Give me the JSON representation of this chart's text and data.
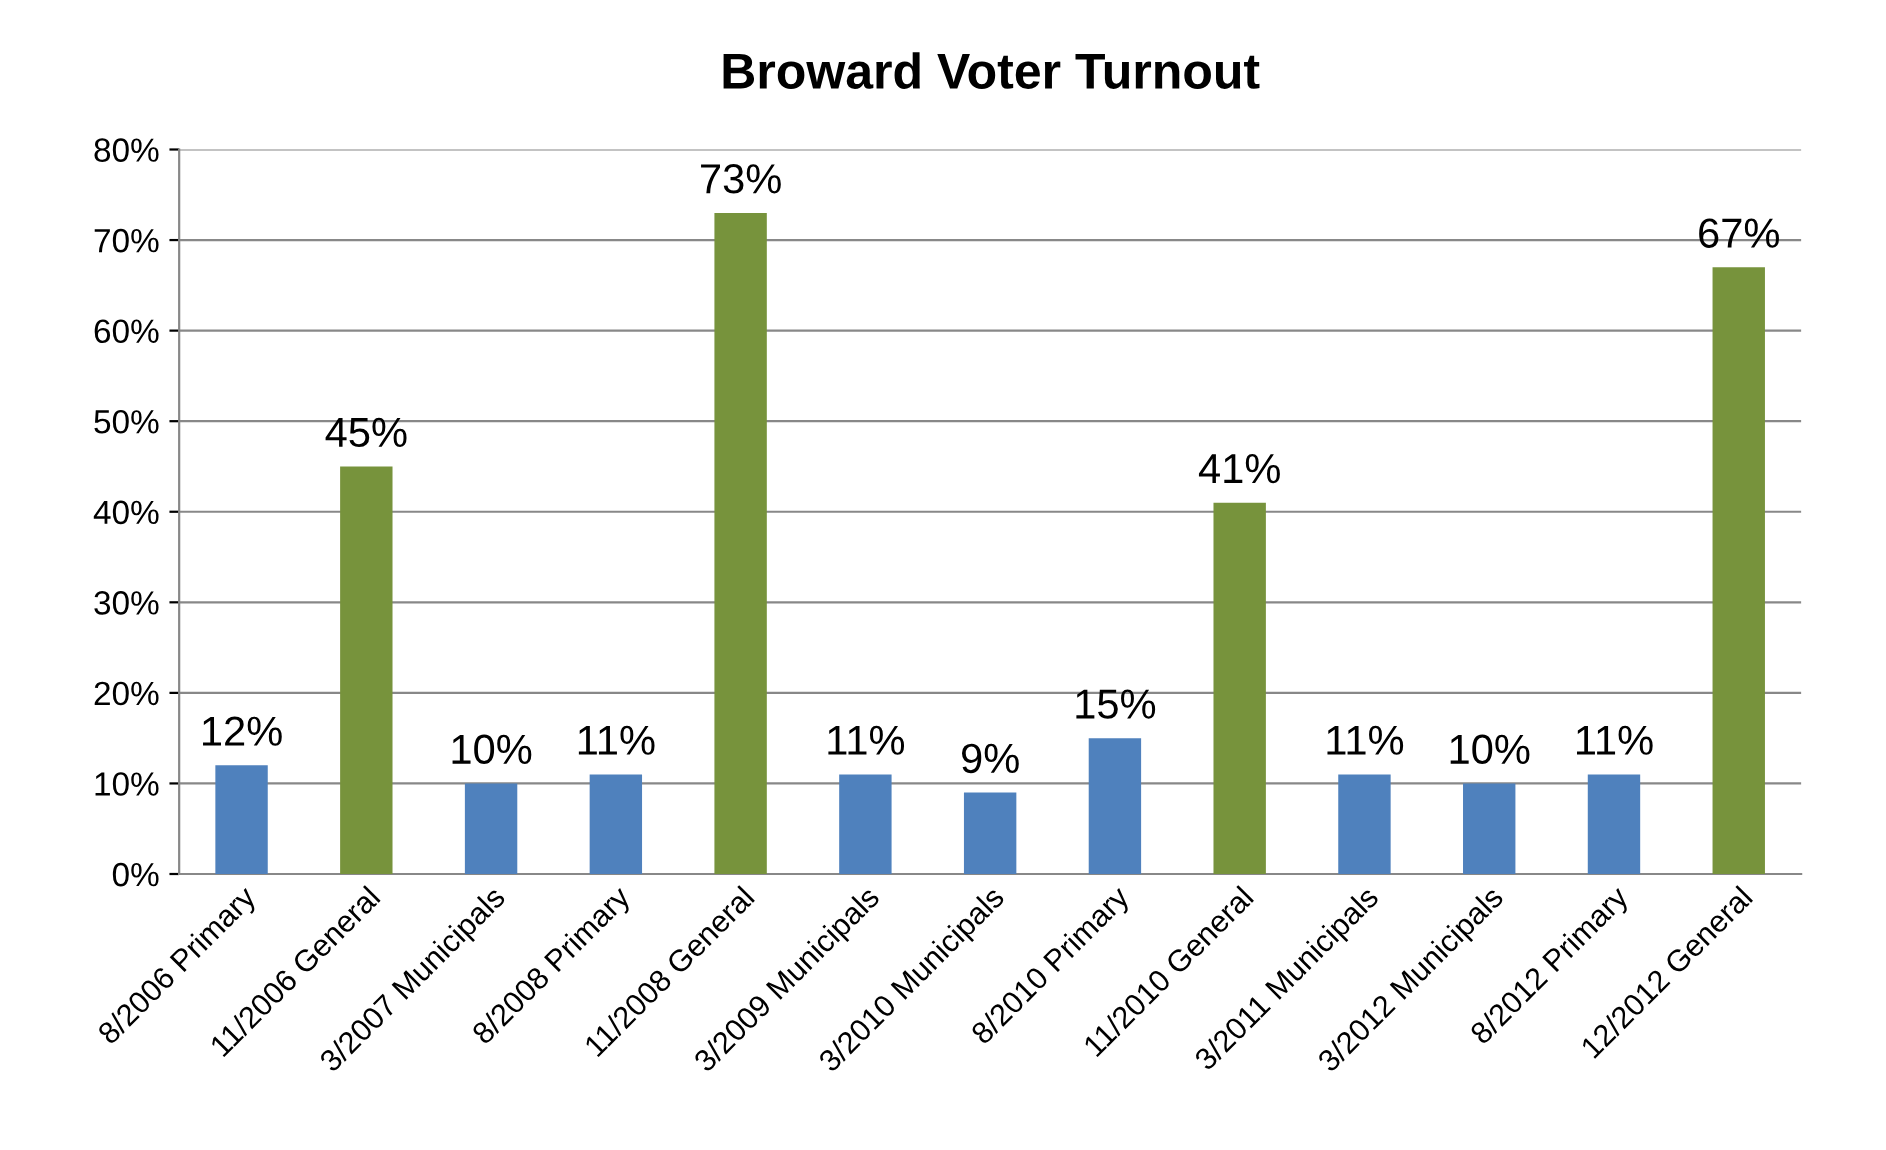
{
  "chart_data": {
    "type": "bar",
    "title": "Broward Voter Turnout",
    "categories": [
      "8/2006 Primary",
      "11/2006 General",
      "3/2007 Municipals",
      "8/2008 Primary",
      "11/2008 General",
      "3/2009 Municipals",
      "3/2010 Municipals",
      "8/2010 Primary",
      "11/2010 General",
      "3/2011 Municipals",
      "3/2012 Municipals",
      "8/2012 Primary",
      "12/2012 General"
    ],
    "values": [
      12,
      45,
      10,
      11,
      73,
      11,
      9,
      15,
      41,
      11,
      10,
      11,
      67
    ],
    "value_labels": [
      "12%",
      "45%",
      "10%",
      "11%",
      "73%",
      "11%",
      "9%",
      "15%",
      "41%",
      "11%",
      "10%",
      "11%",
      "67%"
    ],
    "colors": [
      "#4f81bd",
      "#77933c",
      "#4f81bd",
      "#4f81bd",
      "#77933c",
      "#4f81bd",
      "#4f81bd",
      "#4f81bd",
      "#77933c",
      "#4f81bd",
      "#4f81bd",
      "#4f81bd",
      "#77933c"
    ],
    "ylim": [
      0,
      80
    ],
    "yticks": [
      {
        "value": 0,
        "label": "0%"
      },
      {
        "value": 10,
        "label": "10%"
      },
      {
        "value": 20,
        "label": "20%"
      },
      {
        "value": 30,
        "label": "30%"
      },
      {
        "value": 40,
        "label": "40%"
      },
      {
        "value": 50,
        "label": "50%"
      },
      {
        "value": 60,
        "label": "60%"
      },
      {
        "value": 70,
        "label": "70%"
      },
      {
        "value": 80,
        "label": "80%"
      }
    ],
    "grid": "y"
  }
}
